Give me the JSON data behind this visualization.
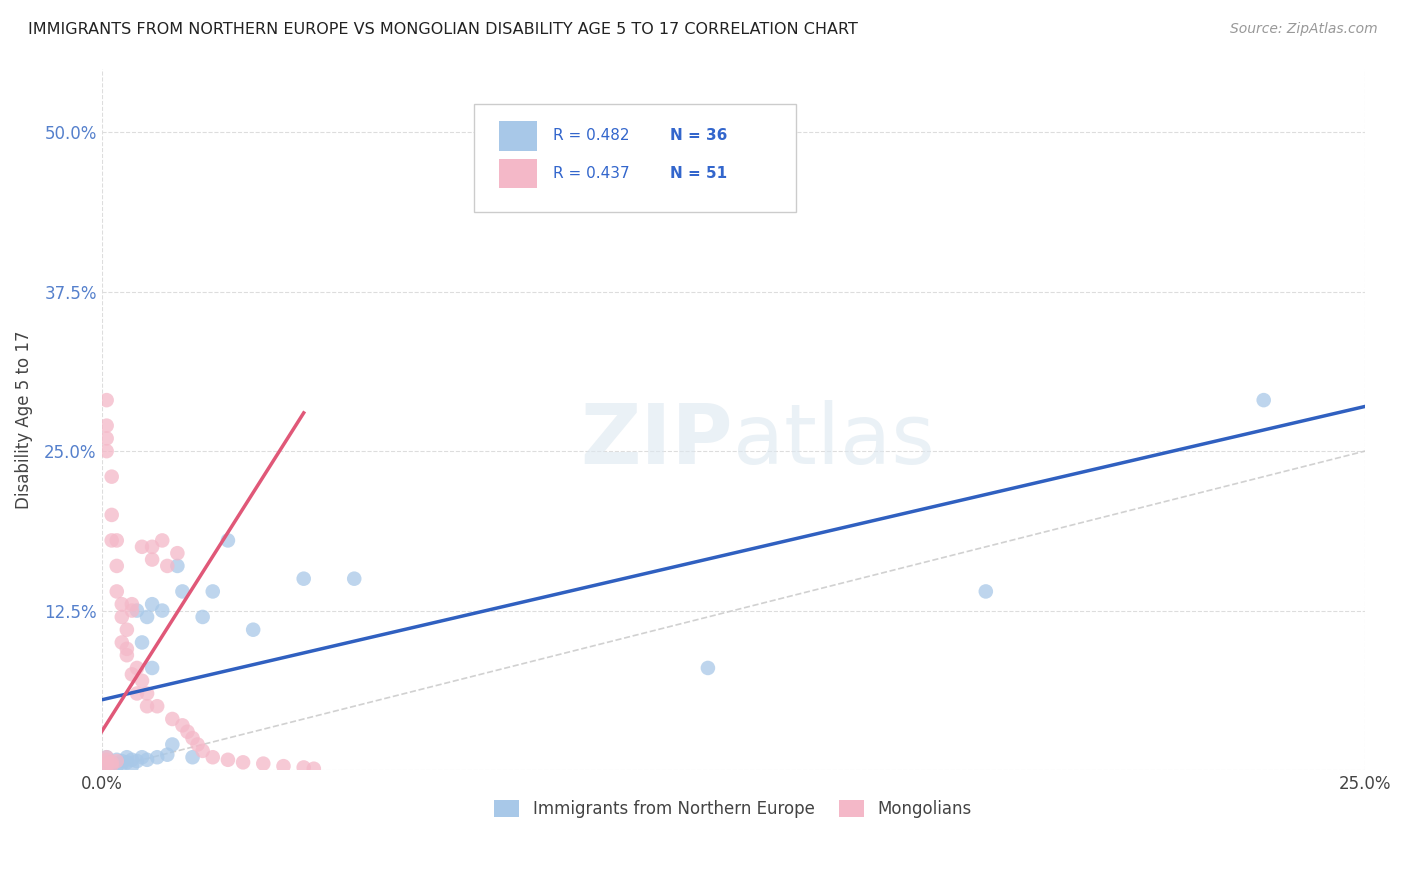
{
  "title": "IMMIGRANTS FROM NORTHERN EUROPE VS MONGOLIAN DISABILITY AGE 5 TO 17 CORRELATION CHART",
  "source": "Source: ZipAtlas.com",
  "ylabel_label": "Disability Age 5 to 17",
  "legend_label1": "Immigrants from Northern Europe",
  "legend_label2": "Mongolians",
  "r1": "0.482",
  "n1": "36",
  "r2": "0.437",
  "n2": "51",
  "color_blue": "#a8c8e8",
  "color_pink": "#f4b8c8",
  "line_blue": "#3060c0",
  "line_pink": "#e05878",
  "line_diag": "#cccccc",
  "background": "#ffffff",
  "grid_color": "#dddddd",
  "blue_points_x": [
    0.001,
    0.001,
    0.002,
    0.002,
    0.003,
    0.003,
    0.004,
    0.004,
    0.005,
    0.005,
    0.006,
    0.006,
    0.007,
    0.007,
    0.008,
    0.008,
    0.009,
    0.009,
    0.01,
    0.01,
    0.011,
    0.012,
    0.013,
    0.014,
    0.015,
    0.016,
    0.018,
    0.02,
    0.022,
    0.025,
    0.03,
    0.04,
    0.05,
    0.12,
    0.175,
    0.23
  ],
  "blue_points_y": [
    0.005,
    0.01,
    0.006,
    0.004,
    0.008,
    0.003,
    0.007,
    0.005,
    0.01,
    0.006,
    0.008,
    0.003,
    0.007,
    0.125,
    0.1,
    0.01,
    0.008,
    0.12,
    0.08,
    0.13,
    0.01,
    0.125,
    0.012,
    0.02,
    0.16,
    0.14,
    0.01,
    0.12,
    0.14,
    0.18,
    0.11,
    0.15,
    0.15,
    0.08,
    0.14,
    0.29
  ],
  "pink_points_x": [
    0.001,
    0.001,
    0.001,
    0.001,
    0.001,
    0.001,
    0.001,
    0.001,
    0.002,
    0.002,
    0.002,
    0.002,
    0.002,
    0.003,
    0.003,
    0.003,
    0.003,
    0.004,
    0.004,
    0.004,
    0.005,
    0.005,
    0.005,
    0.006,
    0.006,
    0.006,
    0.007,
    0.007,
    0.008,
    0.008,
    0.009,
    0.009,
    0.01,
    0.01,
    0.011,
    0.012,
    0.013,
    0.014,
    0.015,
    0.016,
    0.017,
    0.018,
    0.019,
    0.02,
    0.022,
    0.025,
    0.028,
    0.032,
    0.036,
    0.04,
    0.042
  ],
  "pink_points_y": [
    0.003,
    0.005,
    0.008,
    0.01,
    0.29,
    0.25,
    0.26,
    0.27,
    0.23,
    0.2,
    0.18,
    0.004,
    0.006,
    0.16,
    0.14,
    0.18,
    0.007,
    0.12,
    0.1,
    0.13,
    0.09,
    0.095,
    0.11,
    0.13,
    0.125,
    0.075,
    0.08,
    0.06,
    0.07,
    0.175,
    0.06,
    0.05,
    0.165,
    0.175,
    0.05,
    0.18,
    0.16,
    0.04,
    0.17,
    0.035,
    0.03,
    0.025,
    0.02,
    0.015,
    0.01,
    0.008,
    0.006,
    0.005,
    0.003,
    0.002,
    0.001
  ],
  "xlim": [
    0,
    0.25
  ],
  "ylim": [
    0,
    0.55
  ],
  "xtick_vals": [
    0.0,
    0.25
  ],
  "xtick_labels": [
    "0.0%",
    "25.0%"
  ],
  "ytick_vals": [
    0.0,
    0.125,
    0.25,
    0.375,
    0.5
  ],
  "ytick_labels": [
    "",
    "12.5%",
    "25.0%",
    "37.5%",
    "50.0%"
  ],
  "blue_line_x0": 0.0,
  "blue_line_y0": 0.055,
  "blue_line_x1": 0.25,
  "blue_line_y1": 0.285,
  "pink_line_x0": 0.0,
  "pink_line_y0": 0.03,
  "pink_line_x1": 0.04,
  "pink_line_y1": 0.28
}
